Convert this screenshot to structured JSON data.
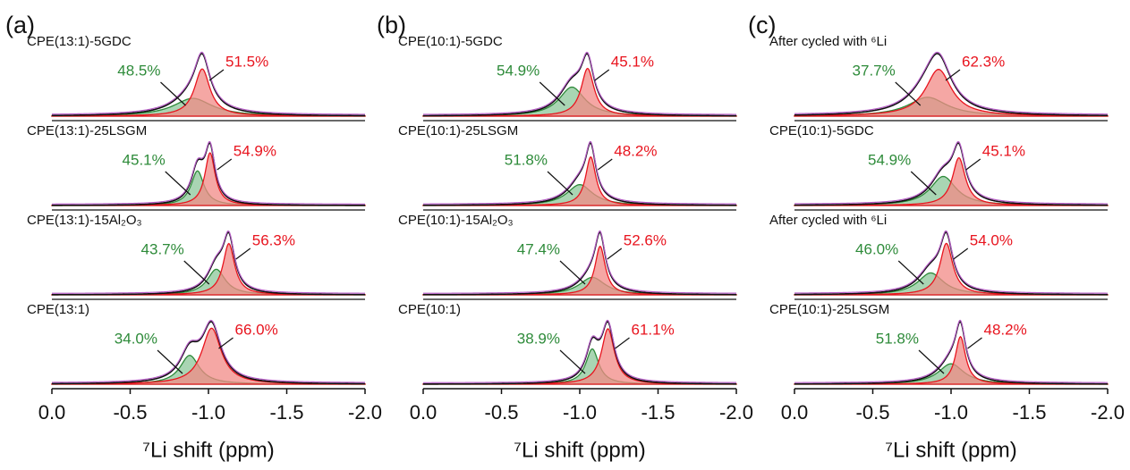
{
  "chart_data": [
    {
      "type": "area",
      "panel_label": "(a)",
      "xlabel": "⁷Li shift (ppm)",
      "xlim": [
        0,
        -2
      ],
      "xticks": [
        {
          "value": 0,
          "label": "0.0"
        },
        -0.5,
        {
          "value": -1,
          "label": "-1.0"
        },
        -1.5,
        {
          "value": -2,
          "label": "-2.0"
        }
      ],
      "colors": [
        "#2e8b3a",
        "#e8141e"
      ],
      "spectra": [
        {
          "label": "CPE(13:1)-5GDC",
          "values": [
            48.5,
            51.5
          ],
          "value_labels": [
            "48.5%",
            "51.5%"
          ],
          "centers": [
            -0.9,
            -0.96
          ],
          "widths": [
            0.3,
            0.12
          ]
        },
        {
          "label": "CPE(13:1)-25LSGM",
          "values": [
            45.1,
            54.9
          ],
          "value_labels": [
            "45.1%",
            "54.9%"
          ],
          "centers": [
            -0.93,
            -1.01
          ],
          "widths": [
            0.1,
            0.08
          ]
        },
        {
          "label": "CPE(13:1)-15Al₂O₃",
          "values": [
            43.7,
            56.3
          ],
          "value_labels": [
            "43.7%",
            "56.3%"
          ],
          "centers": [
            -1.05,
            -1.13
          ],
          "widths": [
            0.14,
            0.09
          ]
        },
        {
          "label": "CPE(13:1)",
          "values": [
            34.0,
            66.0
          ],
          "value_labels": [
            "34.0%",
            "66.0%"
          ],
          "centers": [
            -0.88,
            -1.02
          ],
          "widths": [
            0.15,
            0.15
          ]
        }
      ]
    },
    {
      "type": "area",
      "panel_label": "(b)",
      "xlabel": "⁷Li shift (ppm)",
      "xlim": [
        0,
        -2
      ],
      "xticks": [
        {
          "value": 0,
          "label": "0.0"
        },
        -0.5,
        {
          "value": -1,
          "label": "-1.0"
        },
        -1.5,
        {
          "value": -2,
          "label": "-2.0"
        }
      ],
      "colors": [
        "#2e8b3a",
        "#e8141e"
      ],
      "spectra": [
        {
          "label": "CPE(10:1)-5GDC",
          "values": [
            54.9,
            45.1
          ],
          "value_labels": [
            "54.9%",
            "45.1%"
          ],
          "centers": [
            -0.95,
            -1.05
          ],
          "widths": [
            0.2,
            0.1
          ]
        },
        {
          "label": "CPE(10:1)-25LSGM",
          "values": [
            51.8,
            48.2
          ],
          "value_labels": [
            "51.8%",
            "48.2%"
          ],
          "centers": [
            -1.0,
            -1.07
          ],
          "widths": [
            0.2,
            0.08
          ]
        },
        {
          "label": "CPE(10:1)-15Al₂O₃",
          "values": [
            47.4,
            52.6
          ],
          "value_labels": [
            "47.4%",
            "52.6%"
          ],
          "centers": [
            -1.08,
            -1.13
          ],
          "widths": [
            0.2,
            0.08
          ]
        },
        {
          "label": "CPE(10:1)",
          "values": [
            38.9,
            61.1
          ],
          "value_labels": [
            "38.9%",
            "61.1%"
          ],
          "centers": [
            -1.08,
            -1.18
          ],
          "widths": [
            0.1,
            0.1
          ]
        }
      ]
    },
    {
      "type": "area",
      "panel_label": "(c)",
      "xlabel": "⁷Li shift (ppm)",
      "xlim": [
        0,
        -2
      ],
      "xticks": [
        {
          "value": 0,
          "label": "0.0"
        },
        -0.5,
        {
          "value": -1,
          "label": "-1.0"
        },
        -1.5,
        {
          "value": -2,
          "label": "-2.0"
        }
      ],
      "colors": [
        "#2e8b3a",
        "#e8141e"
      ],
      "spectra": [
        {
          "label": "After cycled with ⁶Li",
          "values": [
            37.7,
            62.3
          ],
          "value_labels": [
            "37.7%",
            "62.3%"
          ],
          "centers": [
            -0.85,
            -0.92
          ],
          "widths": [
            0.3,
            0.2
          ]
        },
        {
          "label": "CPE(10:1)-5GDC",
          "values": [
            54.9,
            45.1
          ],
          "value_labels": [
            "54.9%",
            "45.1%"
          ],
          "centers": [
            -0.95,
            -1.05
          ],
          "widths": [
            0.2,
            0.1
          ]
        },
        {
          "label": "After cycled with ⁶Li",
          "values": [
            46.0,
            54.0
          ],
          "value_labels": [
            "46.0%",
            "54.0%"
          ],
          "centers": [
            -0.87,
            -0.97
          ],
          "widths": [
            0.2,
            0.1
          ]
        },
        {
          "label": "CPE(10:1)-25LSGM",
          "values": [
            51.8,
            48.2
          ],
          "value_labels": [
            "51.8%",
            "48.2%"
          ],
          "centers": [
            -1.0,
            -1.06
          ],
          "widths": [
            0.2,
            0.08
          ]
        }
      ]
    }
  ]
}
